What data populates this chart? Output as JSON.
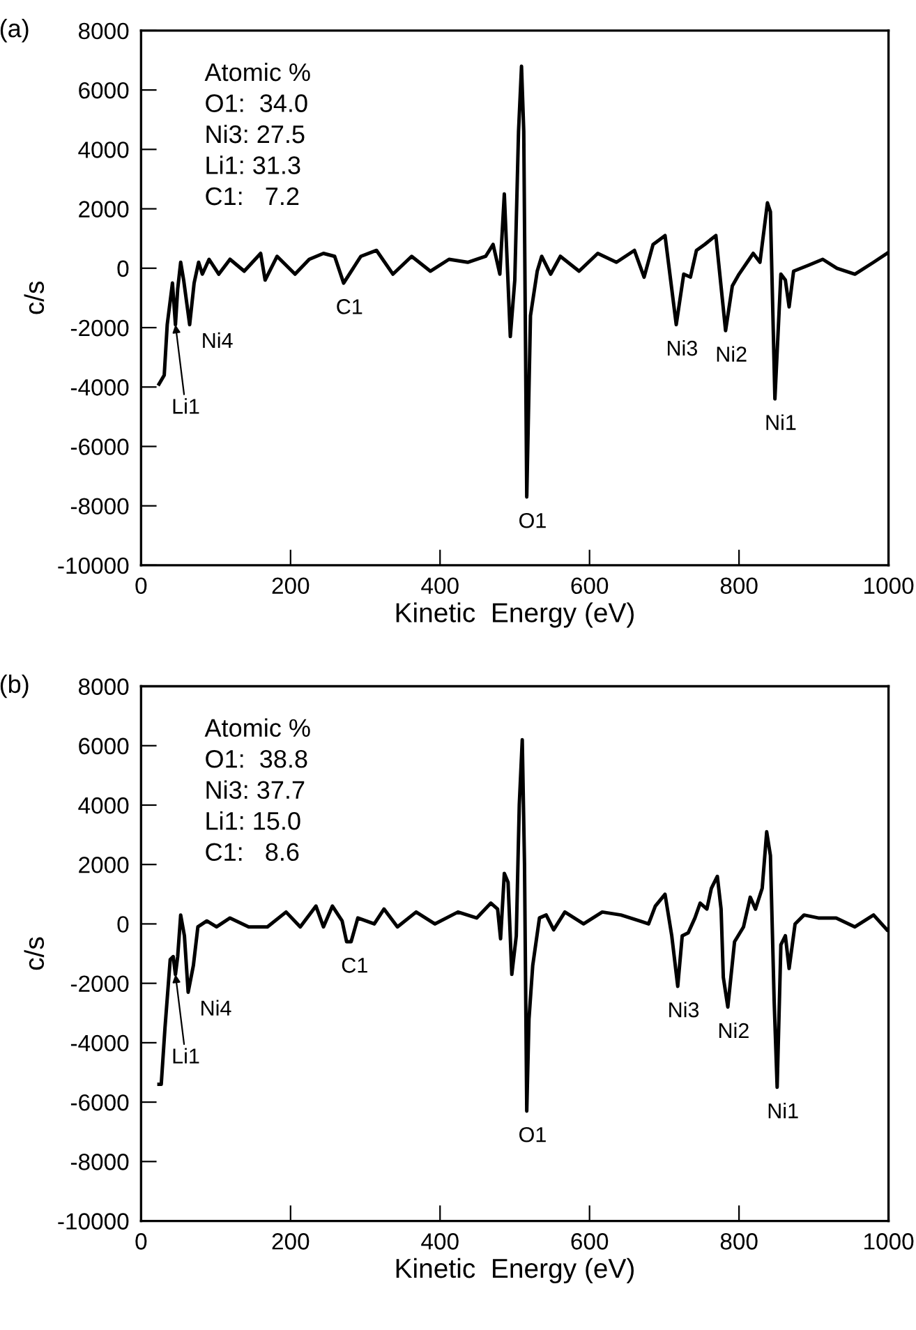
{
  "chart_data": [
    {
      "type": "line",
      "title": "(a)",
      "xlabel": "Kinetic  Energy (eV)",
      "ylabel": "c/s",
      "xlim": [
        0,
        1000
      ],
      "ylim": [
        -10000,
        8000
      ],
      "xticks": [
        0,
        200,
        400,
        600,
        800,
        1000
      ],
      "yticks": [
        -10000,
        -8000,
        -6000,
        -4000,
        -2000,
        0,
        2000,
        4000,
        6000,
        8000
      ],
      "grid": false,
      "legend": false,
      "marker": "none",
      "line_style": "solid",
      "series": [
        {
          "color": "#000000",
          "x": [
            24,
            31,
            35,
            42,
            46,
            49,
            53,
            57,
            65,
            71,
            77,
            82,
            91,
            104,
            119,
            138,
            160,
            166,
            182,
            206,
            225,
            244,
            259,
            271,
            294,
            315,
            337,
            362,
            387,
            412,
            437,
            461,
            471,
            480,
            486,
            494,
            500,
            505,
            509,
            512,
            516,
            521,
            530,
            536,
            548,
            561,
            586,
            611,
            636,
            660,
            673,
            685,
            701,
            709,
            716,
            726,
            735,
            743,
            754,
            769,
            782,
            791,
            800,
            819,
            828,
            838,
            842,
            848,
            856,
            862,
            867,
            873,
            893,
            912,
            931,
            955,
            980,
            998
          ],
          "values": [
            -3900,
            -3600,
            -1900,
            -500,
            -1900,
            -700,
            200,
            -400,
            -1900,
            -500,
            200,
            -200,
            300,
            -200,
            300,
            -100,
            500,
            -400,
            400,
            -200,
            300,
            500,
            400,
            -500,
            400,
            600,
            -200,
            400,
            -100,
            300,
            200,
            400,
            800,
            -200,
            2500,
            -2300,
            -400,
            4600,
            6800,
            4600,
            -7700,
            -1600,
            -100,
            400,
            -200,
            400,
            -100,
            500,
            200,
            600,
            -300,
            800,
            1100,
            -500,
            -1900,
            -200,
            -300,
            600,
            800,
            1100,
            -2100,
            -600,
            -200,
            500,
            200,
            2200,
            1900,
            -4400,
            -200,
            -400,
            -1300,
            -100,
            100,
            300,
            0,
            -200,
            200,
            500
          ]
        }
      ],
      "annotations": [
        "Atomic %",
        "O1:  34.0",
        "Ni3: 27.5",
        "Li1: 31.3",
        "C1:   7.2",
        {
          "text": "Li1",
          "x": 46,
          "y": -1900
        },
        {
          "text": "Ni4",
          "x": 65,
          "y": -1900
        },
        {
          "text": "C1",
          "x": 271,
          "y": -500
        },
        {
          "text": "O1",
          "x": 516,
          "y": -7700
        },
        {
          "text": "Ni3",
          "x": 716,
          "y": -1900
        },
        {
          "text": "Ni2",
          "x": 782,
          "y": -2100
        },
        {
          "text": "Ni1",
          "x": 848,
          "y": -4400
        }
      ]
    },
    {
      "type": "line",
      "title": "(b)",
      "xlabel": "Kinetic  Energy (eV)",
      "ylabel": "c/s",
      "xlim": [
        0,
        1000
      ],
      "ylim": [
        -10000,
        8000
      ],
      "xticks": [
        0,
        200,
        400,
        600,
        800,
        1000
      ],
      "yticks": [
        -10000,
        -8000,
        -6000,
        -4000,
        -2000,
        0,
        2000,
        4000,
        6000,
        8000
      ],
      "grid": false,
      "legend": false,
      "marker": "none",
      "line_style": "solid",
      "series": [
        {
          "color": "#000000",
          "x": [
            24,
            27,
            32,
            39,
            43,
            46,
            49,
            53,
            58,
            63,
            70,
            76,
            82,
            88,
            101,
            119,
            144,
            169,
            194,
            213,
            234,
            244,
            256,
            269,
            275,
            281,
            290,
            312,
            325,
            343,
            368,
            393,
            424,
            449,
            468,
            477,
            481,
            486,
            491,
            496,
            502,
            506,
            510,
            513,
            516,
            519,
            524,
            533,
            542,
            552,
            567,
            592,
            617,
            642,
            667,
            679,
            688,
            701,
            710,
            718,
            724,
            732,
            741,
            748,
            757,
            763,
            771,
            776,
            779,
            785,
            794,
            806,
            815,
            822,
            831,
            837,
            842,
            847,
            851,
            856,
            862,
            867,
            875,
            887,
            906,
            930,
            955,
            980,
            998
          ],
          "values": [
            -5400,
            -5400,
            -3500,
            -1200,
            -1100,
            -1700,
            -1100,
            300,
            -400,
            -2300,
            -1400,
            -100,
            0,
            100,
            -100,
            200,
            -100,
            -100,
            400,
            -100,
            600,
            -100,
            600,
            100,
            -600,
            -600,
            200,
            0,
            500,
            -100,
            400,
            0,
            400,
            200,
            700,
            500,
            -500,
            1700,
            1400,
            -1700,
            -400,
            4000,
            6200,
            2000,
            -6300,
            -3200,
            -1400,
            200,
            300,
            -200,
            400,
            0,
            400,
            300,
            100,
            0,
            600,
            1000,
            -400,
            -2100,
            -400,
            -300,
            200,
            700,
            500,
            1200,
            1600,
            500,
            -1800,
            -2800,
            -600,
            -100,
            900,
            500,
            1200,
            3100,
            2300,
            -2600,
            -5500,
            -700,
            -400,
            -1500,
            0,
            300,
            200,
            200,
            -100,
            300,
            -200
          ]
        }
      ],
      "annotations": [
        "Atomic %",
        "O1:  38.8",
        "Ni3: 37.7",
        "Li1: 15.0",
        "C1:   8.6",
        {
          "text": "Li1",
          "x": 46,
          "y": -1700
        },
        {
          "text": "Ni4",
          "x": 63,
          "y": -2300
        },
        {
          "text": "C1",
          "x": 278,
          "y": -600
        },
        {
          "text": "O1",
          "x": 516,
          "y": -6300
        },
        {
          "text": "Ni3",
          "x": 718,
          "y": -2100
        },
        {
          "text": "Ni2",
          "x": 785,
          "y": -2800
        },
        {
          "text": "Ni1",
          "x": 851,
          "y": -5500
        }
      ]
    }
  ]
}
